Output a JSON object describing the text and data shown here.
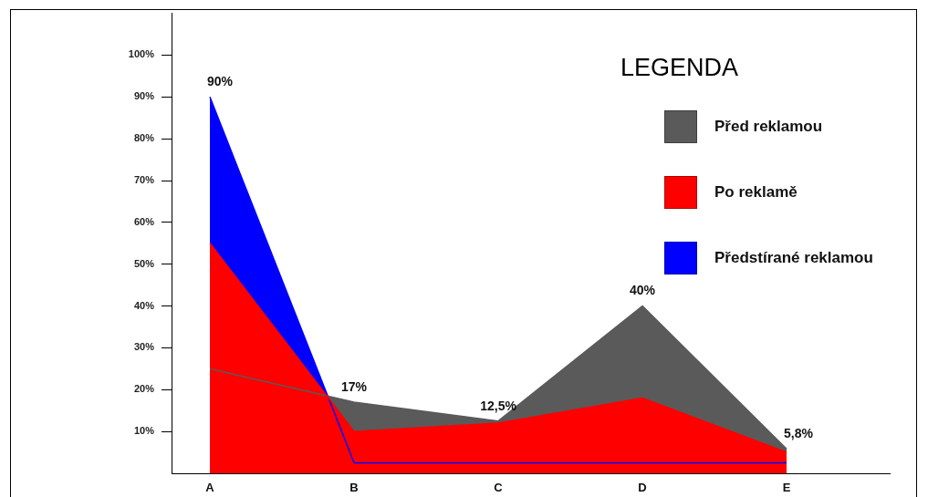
{
  "chart_data": {
    "type": "area",
    "categories": [
      "A",
      "B",
      "C",
      "D",
      "E"
    ],
    "series": [
      {
        "name": "Před reklamou",
        "color": "#5a5a5a",
        "values": [
          25,
          17,
          12.5,
          40,
          5.8
        ],
        "value_labels": [
          null,
          "17%",
          "12,5%",
          "40%",
          "5,8%"
        ]
      },
      {
        "name": "Po reklamě",
        "color": "#ff0000",
        "values": [
          55,
          10,
          12,
          18,
          5
        ]
      },
      {
        "name": "Předstírané reklamou",
        "color": "#0000ff",
        "values": [
          90,
          2.5,
          2.5,
          2.5,
          2.5
        ],
        "value_labels": [
          "90%",
          null,
          null,
          null,
          null
        ]
      }
    ],
    "ylim": [
      0,
      110
    ],
    "yticks": [
      {
        "value": 10,
        "label": "10%"
      },
      {
        "value": 20,
        "label": "20%"
      },
      {
        "value": 30,
        "label": "30%"
      },
      {
        "value": 40,
        "label": "40%"
      },
      {
        "value": 50,
        "label": "50%"
      },
      {
        "value": 60,
        "label": "60%"
      },
      {
        "value": 70,
        "label": "70%"
      },
      {
        "value": 80,
        "label": "80%"
      },
      {
        "value": 90,
        "label": "90%"
      },
      {
        "value": 100,
        "label": "100%"
      }
    ],
    "legend": "top right",
    "legend_title": "LEGENDA"
  }
}
